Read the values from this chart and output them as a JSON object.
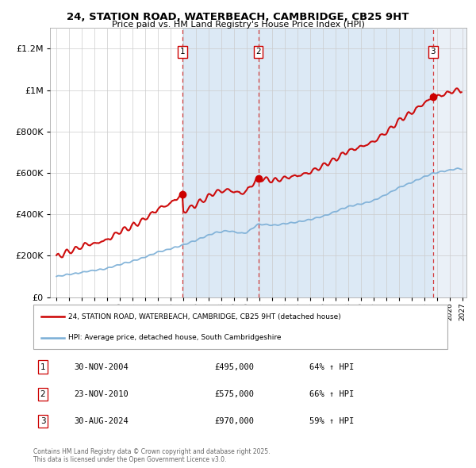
{
  "title": "24, STATION ROAD, WATERBEACH, CAMBRIDGE, CB25 9HT",
  "subtitle": "Price paid vs. HM Land Registry's House Price Index (HPI)",
  "legend_line1": "24, STATION ROAD, WATERBEACH, CAMBRIDGE, CB25 9HT (detached house)",
  "legend_line2": "HPI: Average price, detached house, South Cambridgeshire",
  "footer": "Contains HM Land Registry data © Crown copyright and database right 2025.\nThis data is licensed under the Open Government Licence v3.0.",
  "transactions": [
    {
      "num": 1,
      "date": "30-NOV-2004",
      "price": "£495,000",
      "hpi_pct": "64% ↑ HPI",
      "x_year": 2004.92,
      "price_val": 495000
    },
    {
      "num": 2,
      "date": "23-NOV-2010",
      "price": "£575,000",
      "hpi_pct": "66% ↑ HPI",
      "x_year": 2010.9,
      "price_val": 575000
    },
    {
      "num": 3,
      "date": "30-AUG-2024",
      "price": "£970,000",
      "hpi_pct": "59% ↑ HPI",
      "x_year": 2024.66,
      "price_val": 970000
    }
  ],
  "ylim": [
    0,
    1300000
  ],
  "xlim_start": 1994.5,
  "xlim_end": 2027.0,
  "red_color": "#cc0000",
  "blue_color": "#7aaed6",
  "shade_color": "#dce9f5",
  "yticks": [
    0,
    200000,
    400000,
    600000,
    800000,
    1000000,
    1200000
  ]
}
